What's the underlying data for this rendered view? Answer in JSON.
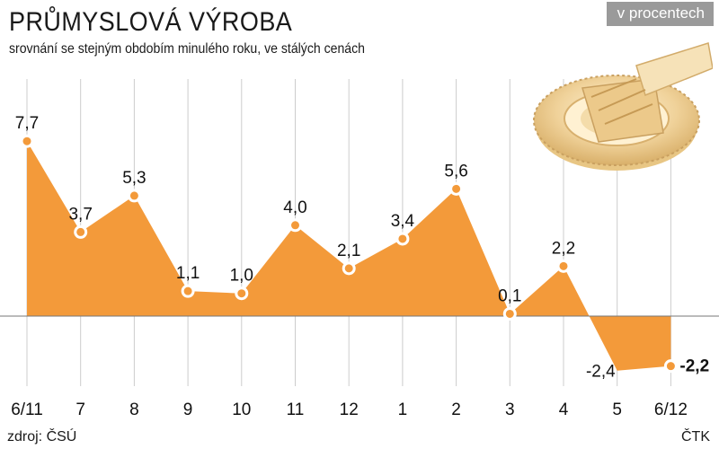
{
  "title": "PRŮMYSLOVÁ VÝROBA",
  "subtitle": "srovnání se stejným obdobím minulého roku, ve stálých cenách",
  "unit_badge": "v procentech",
  "source": "zdroj: ČSÚ",
  "agency": "ČTK",
  "gear_illustration": "gear-icon",
  "colors": {
    "fill": "#f39a3a",
    "marker": "#ffffff",
    "grid": "#cccccc",
    "badge": "#9a9a9a"
  },
  "chart_data": {
    "type": "area",
    "categories": [
      "6/11",
      "7",
      "8",
      "9",
      "10",
      "11",
      "12",
      "1",
      "2",
      "3",
      "4",
      "5",
      "6/12"
    ],
    "values": [
      7.7,
      3.7,
      5.3,
      1.1,
      1.0,
      4.0,
      2.1,
      3.4,
      5.6,
      0.1,
      2.2,
      null,
      -2.2
    ],
    "data_labels": [
      "7,7",
      "3,7",
      "5,3",
      "1,1",
      "1,0",
      "4,0",
      "2,1",
      "3,4",
      "5,6",
      "0,1",
      "2,2",
      "-2,4",
      "-2,2"
    ],
    "label_values": [
      7.7,
      3.7,
      5.3,
      1.1,
      1.0,
      4.0,
      2.1,
      3.4,
      5.6,
      0.1,
      2.2,
      -2.4,
      -2.2
    ],
    "highlight_last": true,
    "grid": "vertical",
    "legend": "none"
  }
}
